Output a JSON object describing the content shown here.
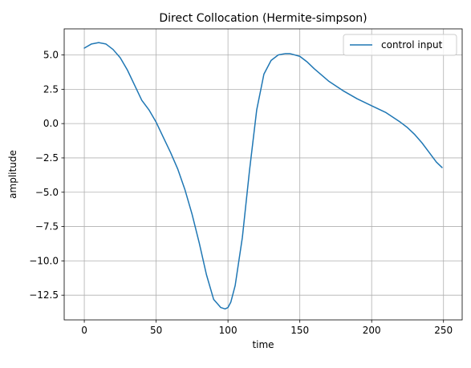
{
  "chart_data": {
    "type": "line",
    "title": "Direct Collocation (Hermite-simpson)",
    "xlabel": "time",
    "ylabel": "amplitude",
    "xlim": [
      -14,
      263
    ],
    "ylim": [
      -14.3,
      6.9
    ],
    "xticks": [
      0,
      50,
      100,
      150,
      200,
      250
    ],
    "xtick_labels": [
      "0",
      "50",
      "100",
      "150",
      "200",
      "250"
    ],
    "yticks": [
      5.0,
      2.5,
      0.0,
      -2.5,
      -5.0,
      -7.5,
      -10.0,
      -12.5
    ],
    "ytick_labels": [
      "5.0",
      "2.5",
      "0.0",
      "−2.5",
      "−5.0",
      "−7.5",
      "−10.0",
      "−12.5"
    ],
    "grid": true,
    "legend_position": "top-right",
    "series": [
      {
        "name": "control input",
        "color": "#1f77b4",
        "x": [
          0,
          5,
          10,
          15,
          20,
          25,
          30,
          35,
          40,
          45,
          50,
          55,
          60,
          65,
          70,
          75,
          80,
          85,
          90,
          95,
          98,
          100,
          102,
          105,
          110,
          115,
          120,
          125,
          130,
          135,
          140,
          143,
          150,
          155,
          160,
          170,
          180,
          190,
          200,
          210,
          220,
          225,
          230,
          235,
          240,
          245,
          249
        ],
        "y": [
          5.5,
          5.8,
          5.9,
          5.8,
          5.4,
          4.8,
          3.9,
          2.8,
          1.7,
          1.0,
          0.1,
          -1.0,
          -2.1,
          -3.3,
          -4.8,
          -6.6,
          -8.7,
          -11.0,
          -12.8,
          -13.4,
          -13.5,
          -13.4,
          -13.0,
          -11.8,
          -8.3,
          -3.4,
          1.0,
          3.6,
          4.6,
          5.0,
          5.1,
          5.1,
          4.9,
          4.5,
          4.0,
          3.1,
          2.4,
          1.8,
          1.3,
          0.8,
          0.1,
          -0.3,
          -0.8,
          -1.4,
          -2.1,
          -2.8,
          -3.2
        ]
      }
    ]
  }
}
